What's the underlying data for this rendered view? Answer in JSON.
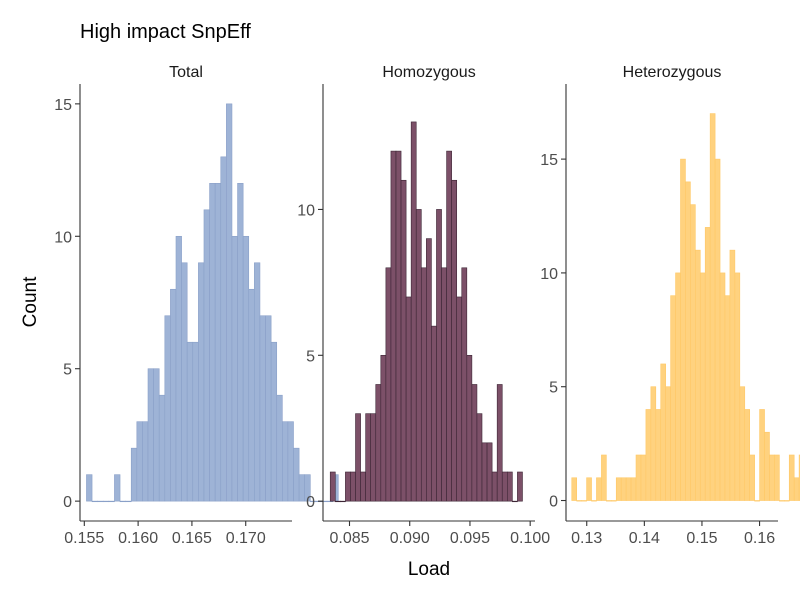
{
  "figure": {
    "title": "High impact SnpEff",
    "xlabel": "Load",
    "ylabel": "Count"
  },
  "chart_data": [
    {
      "type": "bar",
      "panel": "Total",
      "title": "Total",
      "color": {
        "fill": "#9eb3d6",
        "stroke": "#8aa0c8"
      },
      "xlim": [
        0.1546,
        0.1743
      ],
      "ylim": [
        -0.75,
        15.75
      ],
      "xticks": [
        0.155,
        0.16,
        0.165,
        0.17
      ],
      "xtick_labels": [
        "0.155",
        "0.160",
        "0.165",
        "0.170"
      ],
      "yticks": [
        0,
        5,
        10,
        15
      ],
      "ytick_labels": [
        "0",
        "5",
        "10",
        "15"
      ],
      "bin_start": 0.1552,
      "bin_width": 0.00052,
      "counts": [
        1,
        0,
        0,
        0,
        0,
        1,
        0,
        0,
        2,
        3,
        3,
        5,
        5,
        4,
        7,
        8,
        10,
        9,
        6,
        6,
        9,
        11,
        12,
        12,
        13,
        15,
        10,
        12,
        10,
        8,
        9,
        7,
        7,
        6,
        4,
        3,
        3,
        2,
        1,
        1,
        0,
        0,
        0,
        0,
        1
      ]
    },
    {
      "type": "bar",
      "panel": "Homozygous",
      "title": "Homozygous",
      "color": {
        "fill": "#7c5068",
        "stroke": "#3c2535"
      },
      "xlim": [
        0.0828,
        0.1004
      ],
      "ylim": [
        -0.68,
        14.3
      ],
      "xticks": [
        0.085,
        0.09,
        0.095,
        0.1
      ],
      "xtick_labels": [
        "0.085",
        "0.090",
        "0.095",
        "0.100"
      ],
      "yticks": [
        0,
        5,
        10
      ],
      "ytick_labels": [
        "0",
        "5",
        "10"
      ],
      "bin_start": 0.0834,
      "bin_width": 0.00042,
      "counts": [
        1,
        0,
        0,
        1,
        1,
        3,
        1,
        3,
        3,
        4,
        5,
        8,
        12,
        12,
        11,
        7,
        13,
        10,
        8,
        9,
        6,
        10,
        8,
        12,
        11,
        7,
        8,
        5,
        4,
        3,
        2,
        2,
        1,
        4,
        1,
        1,
        0,
        1
      ]
    },
    {
      "type": "bar",
      "panel": "Heterozygous",
      "title": "Heterozygous",
      "color": {
        "fill": "#ffd27f",
        "stroke": "#ffc866"
      },
      "xlim": [
        0.1264,
        0.1632
      ],
      "ylim": [
        -0.9,
        18.3
      ],
      "xticks": [
        0.13,
        0.14,
        0.15,
        0.16
      ],
      "xtick_labels": [
        "0.13",
        "0.14",
        "0.15",
        "0.16"
      ],
      "yticks": [
        0,
        5,
        10,
        15
      ],
      "ytick_labels": [
        "0",
        "5",
        "10",
        "15"
      ],
      "bin_start": 0.1274,
      "bin_width": 0.000858,
      "counts": [
        1,
        0,
        0,
        1,
        0,
        1,
        2,
        0,
        0,
        1,
        1,
        1,
        1,
        2,
        2,
        4,
        5,
        4,
        6,
        5,
        9,
        10,
        15,
        14,
        13,
        11,
        10,
        12,
        17,
        15,
        10,
        9,
        11,
        10,
        5,
        4,
        2,
        0,
        4,
        3,
        2,
        2,
        0,
        0,
        2,
        1,
        2
      ]
    }
  ]
}
